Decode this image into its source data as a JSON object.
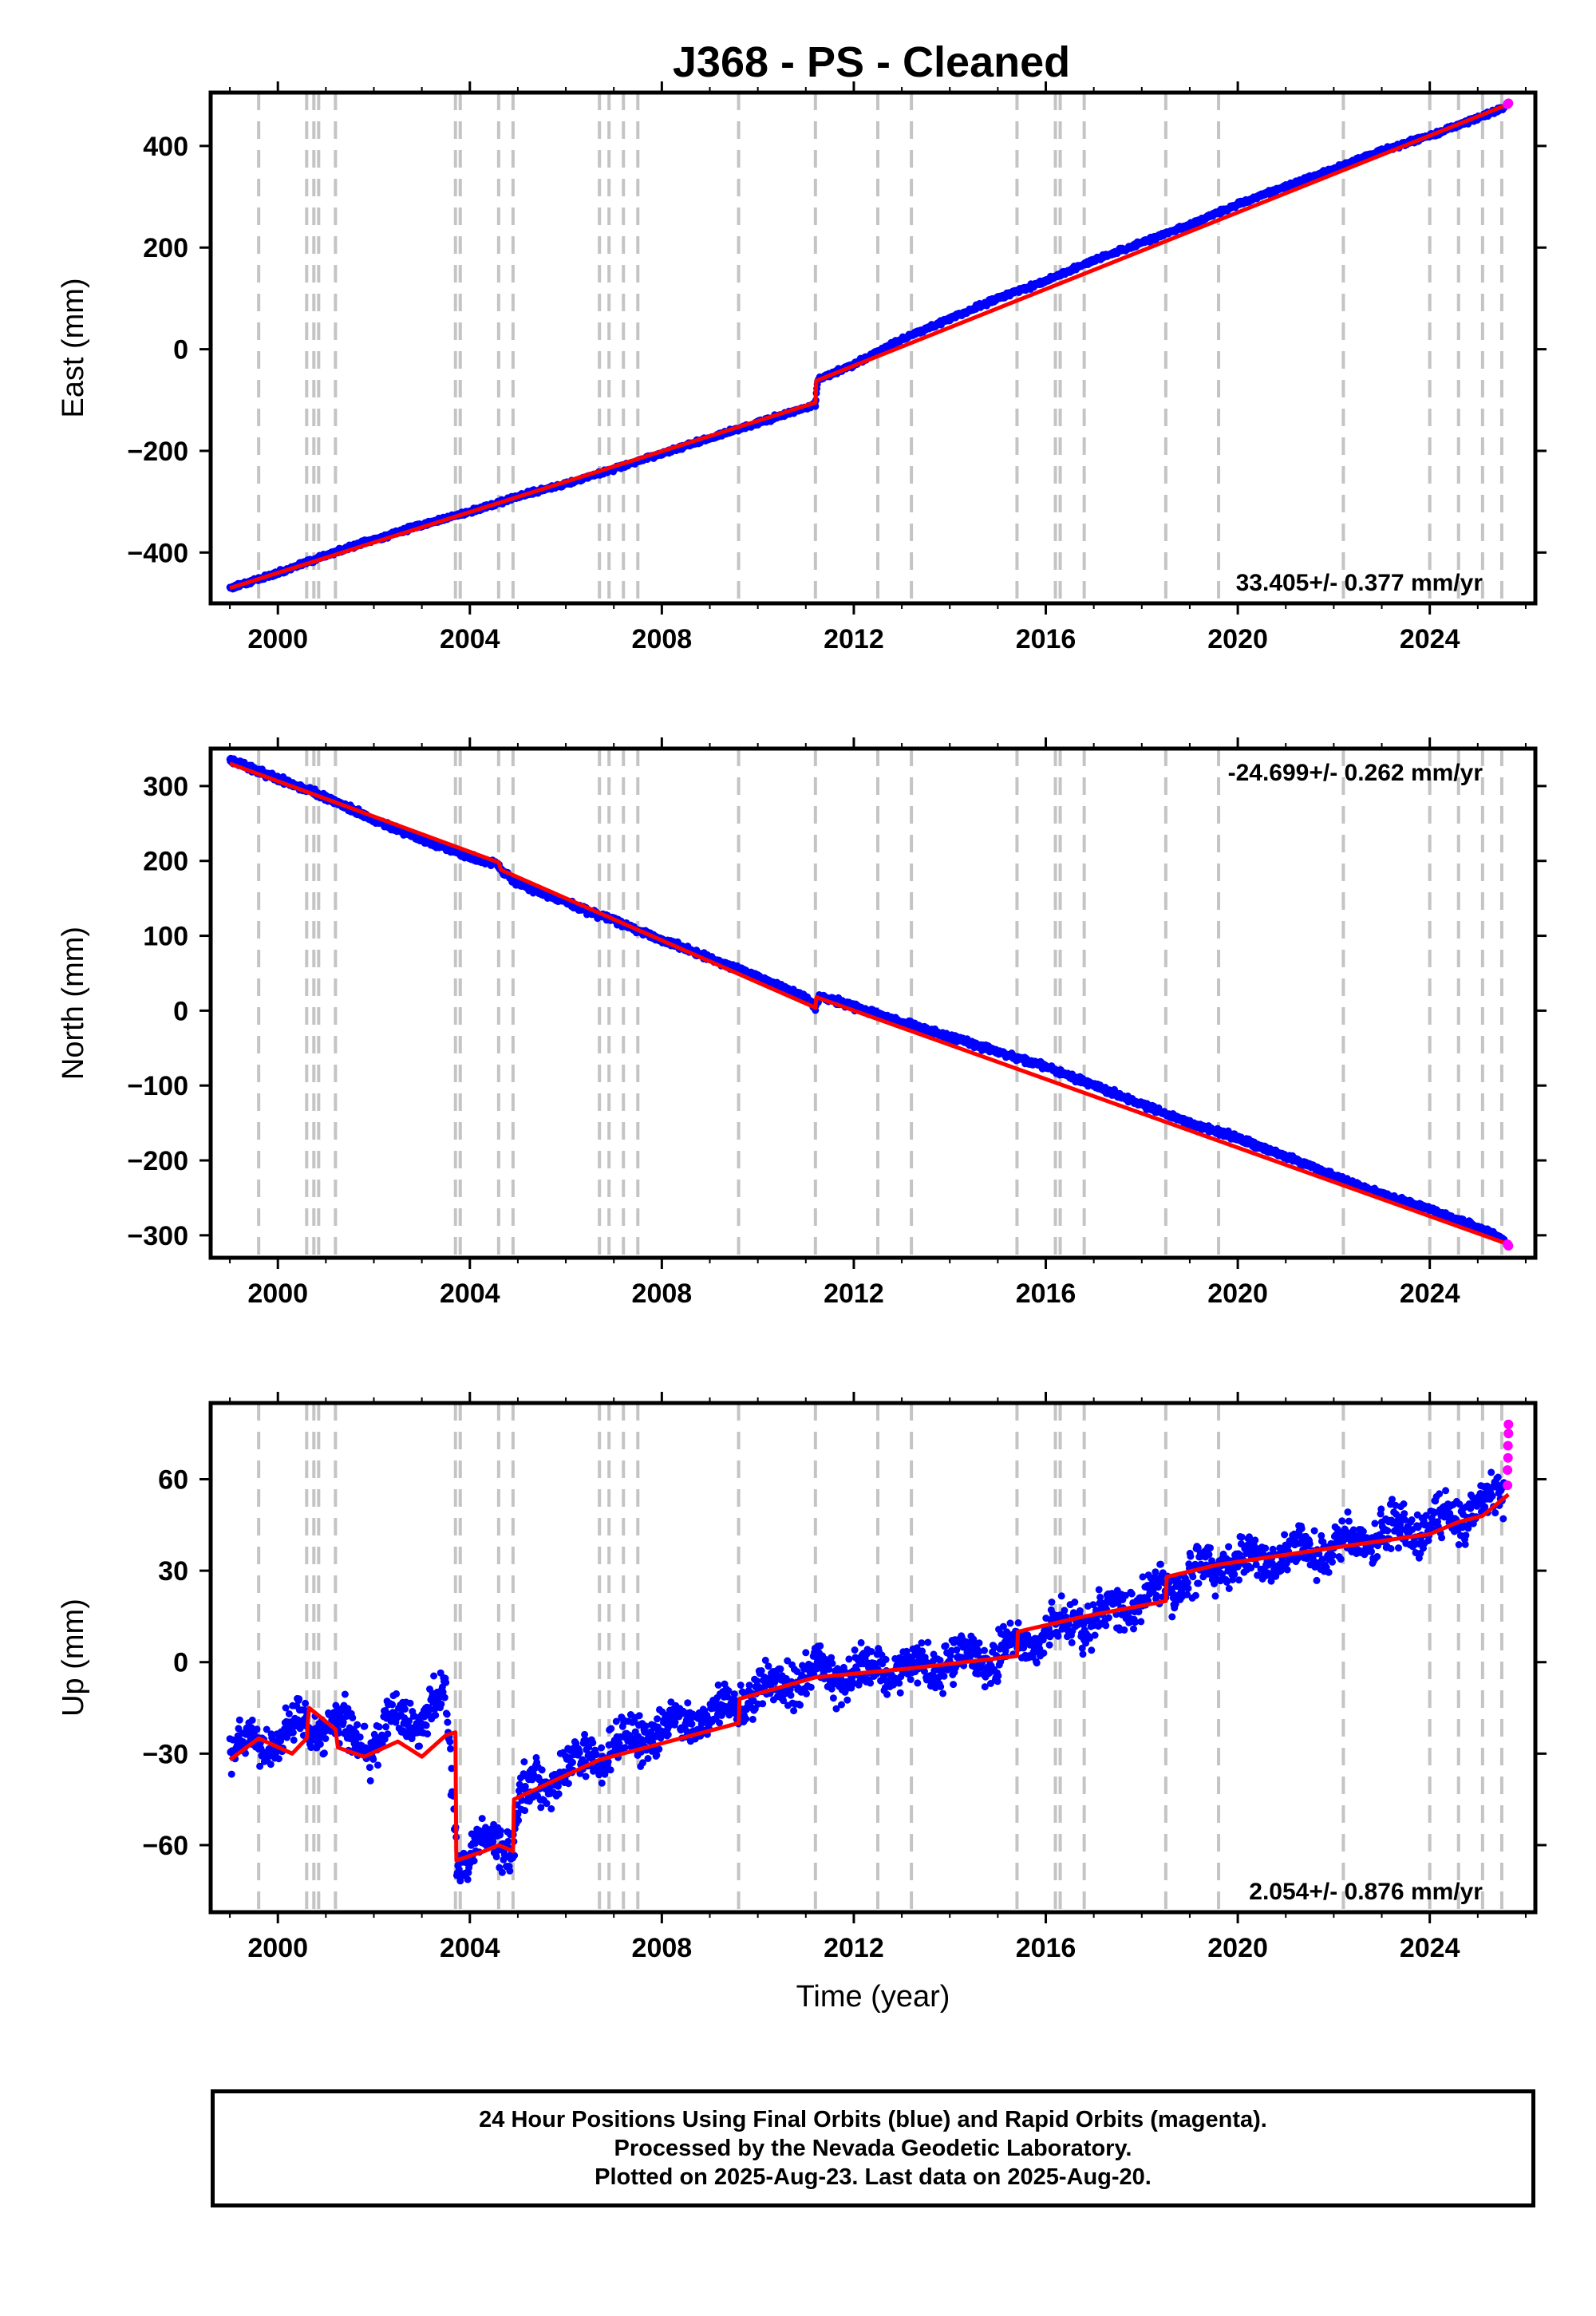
{
  "title": "J368  - PS - Cleaned",
  "chart_data": [
    {
      "type": "scatter",
      "ylabel": "East (mm)",
      "xlim": [
        1998.6,
        2026.2
      ],
      "ylim": [
        -500,
        505
      ],
      "xticks": [
        2000,
        2004,
        2008,
        2012,
        2016,
        2020,
        2024
      ],
      "yticks": [
        -400,
        -200,
        0,
        200,
        400
      ],
      "rate_label": "33.405+/- 0.377 mm/yr",
      "rate_position": "bottom-right",
      "equipment_change_lines": [
        1999.6,
        2000.6,
        2000.75,
        2000.85,
        2001.2,
        2003.7,
        2003.8,
        2004.6,
        2004.9,
        2006.7,
        2006.9,
        2007.2,
        2007.5,
        2009.6,
        2011.2,
        2012.5,
        2013.2,
        2015.4,
        2016.2,
        2016.3,
        2016.8,
        2018.5,
        2019.6,
        2022.2,
        2024.0,
        2024.6,
        2025.1,
        2025.5
      ],
      "series": [
        {
          "name": "Final Orbits",
          "color": "#0000ff",
          "x": [
            1999.0,
            2000.0,
            2001.0,
            2002.0,
            2003.0,
            2004.0,
            2005.0,
            2006.0,
            2007.0,
            2008.0,
            2009.0,
            2010.0,
            2011.0,
            2011.2,
            2011.25,
            2012.0,
            2013.0,
            2014.0,
            2015.0,
            2016.0,
            2017.0,
            2018.0,
            2019.0,
            2020.0,
            2021.0,
            2022.0,
            2023.0,
            2024.0,
            2025.0,
            2025.55
          ],
          "y": [
            -470,
            -440,
            -405,
            -375,
            -345,
            -320,
            -290,
            -265,
            -235,
            -205,
            -175,
            -145,
            -115,
            -108,
            -60,
            -30,
            20,
            60,
            100,
            135,
            175,
            210,
            245,
            285,
            320,
            355,
            390,
            420,
            455,
            475
          ]
        },
        {
          "name": "Rapid Orbits",
          "color": "#ff00ff",
          "x": [
            2025.62,
            2025.64
          ],
          "y": [
            482,
            484
          ]
        },
        {
          "name": "Model",
          "color": "#ff0000",
          "x": [
            1999.0,
            2011.2,
            2011.22,
            2025.64
          ],
          "y": [
            -470,
            -105,
            -62,
            482
          ]
        }
      ]
    },
    {
      "type": "scatter",
      "ylabel": "North (mm)",
      "xlim": [
        1998.6,
        2026.2
      ],
      "ylim": [
        -330,
        350
      ],
      "xticks": [
        2000,
        2004,
        2008,
        2012,
        2016,
        2020,
        2024
      ],
      "yticks": [
        -300,
        -200,
        -100,
        0,
        100,
        200,
        300
      ],
      "rate_label": "-24.699+/- 0.262 mm/yr",
      "rate_position": "top-right",
      "equipment_change_lines": [
        1999.6,
        2000.6,
        2000.75,
        2000.85,
        2001.2,
        2003.7,
        2003.8,
        2004.6,
        2004.9,
        2006.7,
        2006.9,
        2007.2,
        2007.5,
        2009.6,
        2011.2,
        2012.5,
        2013.2,
        2015.4,
        2016.2,
        2016.3,
        2016.8,
        2018.5,
        2019.6,
        2022.2,
        2024.0,
        2024.6,
        2025.1,
        2025.5
      ],
      "series": [
        {
          "name": "Final Orbits",
          "color": "#0000ff",
          "x": [
            1999.0,
            2000.0,
            2001.0,
            2002.0,
            2003.0,
            2004.0,
            2004.6,
            2004.7,
            2005.0,
            2006.0,
            2007.0,
            2008.0,
            2009.0,
            2010.0,
            2011.0,
            2011.2,
            2011.3,
            2012.0,
            2013.0,
            2014.0,
            2015.0,
            2016.0,
            2017.0,
            2018.0,
            2019.0,
            2020.0,
            2021.0,
            2022.0,
            2023.0,
            2024.0,
            2025.0,
            2025.55
          ],
          "y": [
            335,
            310,
            285,
            255,
            228,
            205,
            195,
            185,
            170,
            145,
            120,
            95,
            70,
            45,
            18,
            5,
            20,
            5,
            -15,
            -35,
            -55,
            -75,
            -100,
            -125,
            -150,
            -170,
            -195,
            -220,
            -245,
            -265,
            -290,
            -305
          ]
        },
        {
          "name": "Rapid Orbits",
          "color": "#ff00ff",
          "x": [
            2025.62,
            2025.64
          ],
          "y": [
            -312,
            -314
          ]
        },
        {
          "name": "Model",
          "color": "#ff0000",
          "x": [
            1999.0,
            2004.6,
            2004.65,
            2011.2,
            2011.22,
            2025.64
          ],
          "y": [
            330,
            198,
            188,
            4,
            18,
            -312
          ]
        }
      ]
    },
    {
      "type": "scatter",
      "xlabel": "Time (year)",
      "ylabel": "Up (mm)",
      "xlim": [
        1998.6,
        2026.2
      ],
      "ylim": [
        -82,
        85
      ],
      "xticks": [
        2000,
        2004,
        2008,
        2012,
        2016,
        2020,
        2024
      ],
      "yticks": [
        -60,
        -30,
        0,
        30,
        60
      ],
      "rate_label": "2.054+/- 0.876 mm/yr",
      "rate_position": "bottom-right",
      "equipment_change_lines": [
        1999.6,
        2000.6,
        2000.75,
        2000.85,
        2001.2,
        2003.7,
        2003.8,
        2004.6,
        2004.9,
        2006.7,
        2006.9,
        2007.2,
        2007.5,
        2009.6,
        2011.2,
        2012.5,
        2013.2,
        2015.4,
        2016.2,
        2016.3,
        2016.8,
        2018.5,
        2019.6,
        2022.2,
        2024.0,
        2024.6,
        2025.1,
        2025.5
      ],
      "series": [
        {
          "name": "Final Orbits",
          "color": "#0000ff",
          "x": [
            1999.0,
            1999.5,
            2000.0,
            2000.6,
            2001.0,
            2001.5,
            2002.0,
            2002.5,
            2003.0,
            2003.5,
            2003.75,
            2004.0,
            2004.5,
            2004.9,
            2005.0,
            2005.5,
            2006.0,
            2007.0,
            2008.0,
            2009.0,
            2010.0,
            2011.0,
            2012.0,
            2013.0,
            2014.0,
            2015.0,
            2016.0,
            2017.0,
            2018.0,
            2019.0,
            2020.0,
            2021.0,
            2022.0,
            2023.0,
            2024.0,
            2025.0,
            2025.55
          ],
          "y": [
            -32,
            -25,
            -28,
            -18,
            -25,
            -20,
            -30,
            -15,
            -22,
            -10,
            -65,
            -63,
            -58,
            -60,
            -45,
            -40,
            -35,
            -28,
            -22,
            -18,
            -10,
            -5,
            -3,
            -2,
            0,
            2,
            8,
            15,
            20,
            28,
            33,
            35,
            38,
            42,
            44,
            50,
            55
          ]
        },
        {
          "name": "Rapid Orbits",
          "color": "#ff00ff",
          "x": [
            2025.62,
            2025.62,
            2025.63,
            2025.63,
            2025.64,
            2025.64
          ],
          "y": [
            58,
            63,
            67,
            71,
            75,
            78
          ]
        },
        {
          "name": "Model",
          "color": "#ff0000",
          "x": [
            1999.0,
            1999.6,
            2000.3,
            2000.6,
            2000.65,
            2001.2,
            2001.25,
            2001.8,
            2002.5,
            2003.0,
            2003.5,
            2003.7,
            2003.72,
            2004.3,
            2004.6,
            2004.9,
            2004.92,
            2006.7,
            2009.6,
            2009.62,
            2011.2,
            2013.2,
            2015.4,
            2015.42,
            2016.8,
            2018.5,
            2018.52,
            2019.6,
            2022.2,
            2024.0,
            2024.6,
            2025.1,
            2025.64
          ],
          "y": [
            -32,
            -25,
            -30,
            -25,
            -15,
            -22,
            -28,
            -31,
            -26,
            -31,
            -24,
            -23,
            -65,
            -62,
            -60,
            -62,
            -45,
            -32,
            -20,
            -12,
            -5,
            -2,
            2,
            10,
            15,
            20,
            28,
            32,
            38,
            42,
            46,
            48,
            55
          ]
        }
      ]
    }
  ],
  "footer": {
    "line1": "24 Hour Positions Using Final Orbits (blue) and Rapid Orbits (magenta).",
    "line2": "Processed by the Nevada Geodetic Laboratory.",
    "line3": "Plotted on 2025-Aug-23. Last data on 2025-Aug-20."
  }
}
